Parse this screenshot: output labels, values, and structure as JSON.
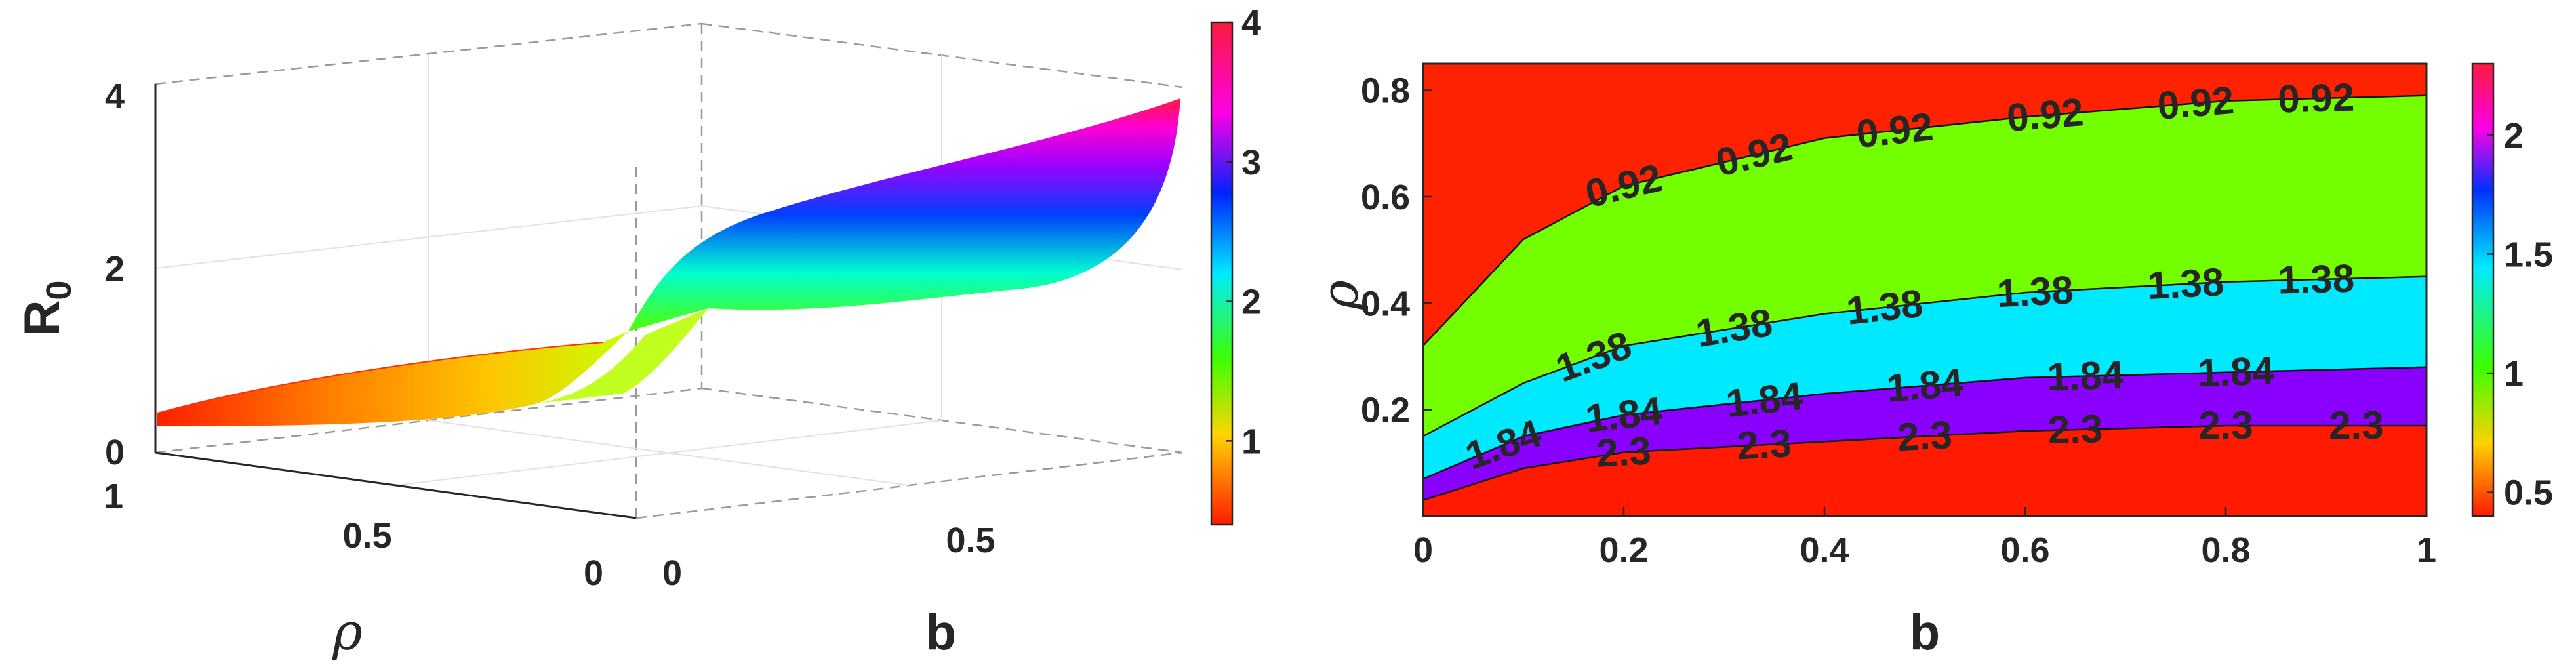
{
  "chart_data": [
    {
      "type": "surface",
      "zlabel": "R",
      "zlabel_subscript": "0",
      "xlabel": "b",
      "ylabel": "ρ",
      "xlim": [
        0,
        1
      ],
      "ylim": [
        0,
        1
      ],
      "zlim": [
        0,
        4
      ],
      "x_ticks": [
        "0",
        "0.5"
      ],
      "y_ticks": [
        "0",
        "0.5",
        "1"
      ],
      "z_ticks": [
        "0",
        "2",
        "4"
      ],
      "colormap": "hsv",
      "colorbar": {
        "min": 0.4,
        "max": 4.0,
        "ticks": [
          "1",
          "2",
          "3",
          "4"
        ]
      },
      "surface_corners": {
        "b0_rho1": 0.4,
        "b1_rho1": 4.0,
        "b0_rho0": 0.4,
        "b1_rho0": 2.2
      }
    },
    {
      "type": "contourf",
      "xlabel": "b",
      "ylabel": "ρ",
      "xlim": [
        0,
        1
      ],
      "ylim": [
        0,
        0.85
      ],
      "x_ticks": [
        "0",
        "0.2",
        "0.4",
        "0.6",
        "0.8",
        "1"
      ],
      "y_ticks": [
        "0.2",
        "0.4",
        "0.6",
        "0.8"
      ],
      "levels": [
        0.92,
        1.38,
        1.84,
        2.3
      ],
      "level_labels": [
        "0.92",
        "1.38",
        "1.84",
        "2.3"
      ],
      "colorbar": {
        "min": 0.4,
        "max": 2.3,
        "ticks": [
          "0.5",
          "1",
          "1.5",
          "2"
        ]
      },
      "band_colors": [
        "#ff2200",
        "#73ff00",
        "#00eaff",
        "#8a00ff",
        "#ff1a00"
      ],
      "contours": [
        {
          "level": "0.92",
          "b": [
            0,
            0.1,
            0.2,
            0.4,
            0.6,
            0.8,
            1
          ],
          "rho": [
            0.32,
            0.52,
            0.62,
            0.71,
            0.75,
            0.78,
            0.79
          ]
        },
        {
          "level": "1.38",
          "b": [
            0,
            0.1,
            0.2,
            0.4,
            0.6,
            0.8,
            1
          ],
          "rho": [
            0.15,
            0.25,
            0.32,
            0.38,
            0.42,
            0.44,
            0.45
          ]
        },
        {
          "level": "1.84",
          "b": [
            0,
            0.1,
            0.2,
            0.4,
            0.6,
            0.8,
            1
          ],
          "rho": [
            0.07,
            0.15,
            0.19,
            0.23,
            0.26,
            0.27,
            0.28
          ]
        },
        {
          "level": "2.3",
          "b": [
            0,
            0.1,
            0.2,
            0.4,
            0.6,
            0.8,
            1
          ],
          "rho": [
            0.03,
            0.09,
            0.12,
            0.14,
            0.16,
            0.17,
            0.17
          ]
        }
      ],
      "label_positions": [
        {
          "level": "0.92",
          "b": [
            0.2,
            0.33,
            0.47,
            0.62,
            0.77,
            0.89
          ]
        },
        {
          "level": "1.38",
          "b": [
            0.17,
            0.31,
            0.46,
            0.61,
            0.76,
            0.89
          ]
        },
        {
          "level": "1.84",
          "b": [
            0.08,
            0.2,
            0.34,
            0.5,
            0.66,
            0.81
          ]
        },
        {
          "level": "2.3",
          "b": [
            0.2,
            0.34,
            0.5,
            0.65,
            0.8,
            0.93
          ]
        }
      ]
    }
  ]
}
